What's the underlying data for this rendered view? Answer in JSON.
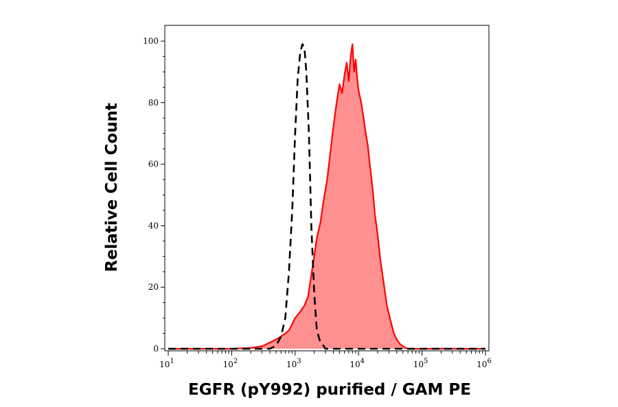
{
  "chart_data": {
    "type": "area",
    "title": "",
    "xlabel": "EGFR (pY992) purified / GAM PE",
    "ylabel": "Relative Cell Count",
    "x_scale": "log",
    "xlim": [
      10,
      1000000
    ],
    "ylim": [
      0,
      100
    ],
    "x_ticks": [
      {
        "value": 10,
        "base": "10",
        "exp": "1"
      },
      {
        "value": 100,
        "base": "10",
        "exp": "2"
      },
      {
        "value": 1000,
        "base": "10",
        "exp": "3"
      },
      {
        "value": 10000,
        "base": "10",
        "exp": "4"
      },
      {
        "value": 100000,
        "base": "10",
        "exp": "5"
      },
      {
        "value": 1000000,
        "base": "10",
        "exp": "6"
      }
    ],
    "y_ticks": [
      0,
      20,
      40,
      60,
      80,
      100
    ],
    "grid": false,
    "series": [
      {
        "style": "dashed",
        "color": "#000000",
        "fill": "none",
        "x": [
          10,
          400,
          500,
          600,
          700,
          800,
          900,
          1000,
          1100,
          1200,
          1300,
          1400,
          1500,
          1650,
          1800,
          2000,
          2200,
          2500,
          2800,
          3000,
          100000,
          1000000
        ],
        "y": [
          0,
          0,
          1,
          4,
          10,
          25,
          45,
          70,
          88,
          96,
          99,
          98,
          90,
          70,
          40,
          18,
          6,
          2,
          1,
          0,
          0,
          0
        ]
      },
      {
        "style": "solid",
        "color": "#ff0000",
        "fill": "#ff9090",
        "x": [
          10,
          100,
          200,
          300,
          400,
          500,
          600,
          700,
          800,
          900,
          1000,
          1200,
          1400,
          1600,
          1800,
          2000,
          2200,
          2500,
          2800,
          3200,
          3600,
          4000,
          4500,
          5000,
          5500,
          6000,
          6500,
          7000,
          7500,
          8000,
          8500,
          9000,
          9500,
          10000,
          11000,
          12000,
          13000,
          14000,
          15000,
          16000,
          17000,
          18000,
          20000,
          22000,
          25000,
          28000,
          32000,
          36000,
          40000,
          45000,
          50000,
          55000,
          60000,
          100000,
          1000000
        ],
        "y": [
          0,
          0,
          0.3,
          0.8,
          2,
          3,
          4,
          5,
          6,
          8,
          10,
          12,
          14,
          17,
          24,
          30,
          36,
          41,
          48,
          55,
          64,
          72,
          80,
          86,
          83,
          89,
          93,
          87,
          95,
          99,
          90,
          94,
          88,
          84,
          80,
          75,
          70,
          66,
          60,
          55,
          50,
          44,
          37,
          29,
          21,
          14,
          9,
          5,
          3,
          1.5,
          0.8,
          0.3,
          0,
          0,
          0
        ]
      }
    ]
  }
}
